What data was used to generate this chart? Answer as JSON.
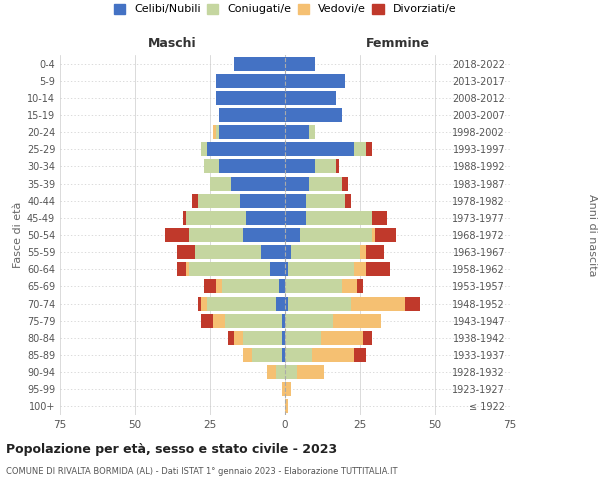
{
  "age_groups": [
    "100+",
    "95-99",
    "90-94",
    "85-89",
    "80-84",
    "75-79",
    "70-74",
    "65-69",
    "60-64",
    "55-59",
    "50-54",
    "45-49",
    "40-44",
    "35-39",
    "30-34",
    "25-29",
    "20-24",
    "15-19",
    "10-14",
    "5-9",
    "0-4"
  ],
  "birth_years": [
    "≤ 1922",
    "1923-1927",
    "1928-1932",
    "1933-1937",
    "1938-1942",
    "1943-1947",
    "1948-1952",
    "1953-1957",
    "1958-1962",
    "1963-1967",
    "1968-1972",
    "1973-1977",
    "1978-1982",
    "1983-1987",
    "1988-1992",
    "1993-1997",
    "1998-2002",
    "2003-2007",
    "2008-2012",
    "2013-2017",
    "2018-2022"
  ],
  "colors": {
    "celibi": "#4472c4",
    "coniugati": "#c5d6a0",
    "vedovi": "#f5c072",
    "divorziati": "#c0392b"
  },
  "maschi": {
    "celibi": [
      0,
      0,
      0,
      1,
      1,
      1,
      3,
      2,
      5,
      8,
      14,
      13,
      15,
      18,
      22,
      26,
      22,
      22,
      23,
      23,
      17
    ],
    "coniugati": [
      0,
      0,
      3,
      10,
      13,
      19,
      23,
      19,
      27,
      22,
      18,
      20,
      14,
      7,
      5,
      2,
      1,
      0,
      0,
      0,
      0
    ],
    "vedovi": [
      0,
      1,
      3,
      3,
      3,
      4,
      2,
      2,
      1,
      0,
      0,
      0,
      0,
      0,
      0,
      0,
      1,
      0,
      0,
      0,
      0
    ],
    "divorziati": [
      0,
      0,
      0,
      0,
      2,
      4,
      1,
      4,
      3,
      6,
      8,
      1,
      2,
      0,
      0,
      0,
      0,
      0,
      0,
      0,
      0
    ]
  },
  "femmine": {
    "celibi": [
      0,
      0,
      0,
      0,
      0,
      0,
      1,
      0,
      1,
      2,
      5,
      7,
      7,
      8,
      10,
      23,
      8,
      19,
      17,
      20,
      10
    ],
    "coniugati": [
      0,
      0,
      4,
      9,
      12,
      16,
      21,
      19,
      22,
      23,
      24,
      22,
      13,
      11,
      7,
      4,
      2,
      0,
      0,
      0,
      0
    ],
    "vedovi": [
      1,
      2,
      9,
      14,
      14,
      16,
      18,
      5,
      4,
      2,
      1,
      0,
      0,
      0,
      0,
      0,
      0,
      0,
      0,
      0,
      0
    ],
    "divorziati": [
      0,
      0,
      0,
      4,
      3,
      0,
      5,
      2,
      8,
      6,
      7,
      5,
      2,
      2,
      1,
      2,
      0,
      0,
      0,
      0,
      0
    ]
  },
  "title": "Popolazione per età, sesso e stato civile - 2023",
  "subtitle": "COMUNE DI RIVALTA BORMIDA (AL) - Dati ISTAT 1° gennaio 2023 - Elaborazione TUTTITALIA.IT",
  "xlabel_left": "Maschi",
  "xlabel_right": "Femmine",
  "ylabel_left": "Fasce di età",
  "ylabel_right": "Anni di nascita",
  "xlim": 75,
  "background_color": "#ffffff",
  "grid_color": "#cccccc"
}
